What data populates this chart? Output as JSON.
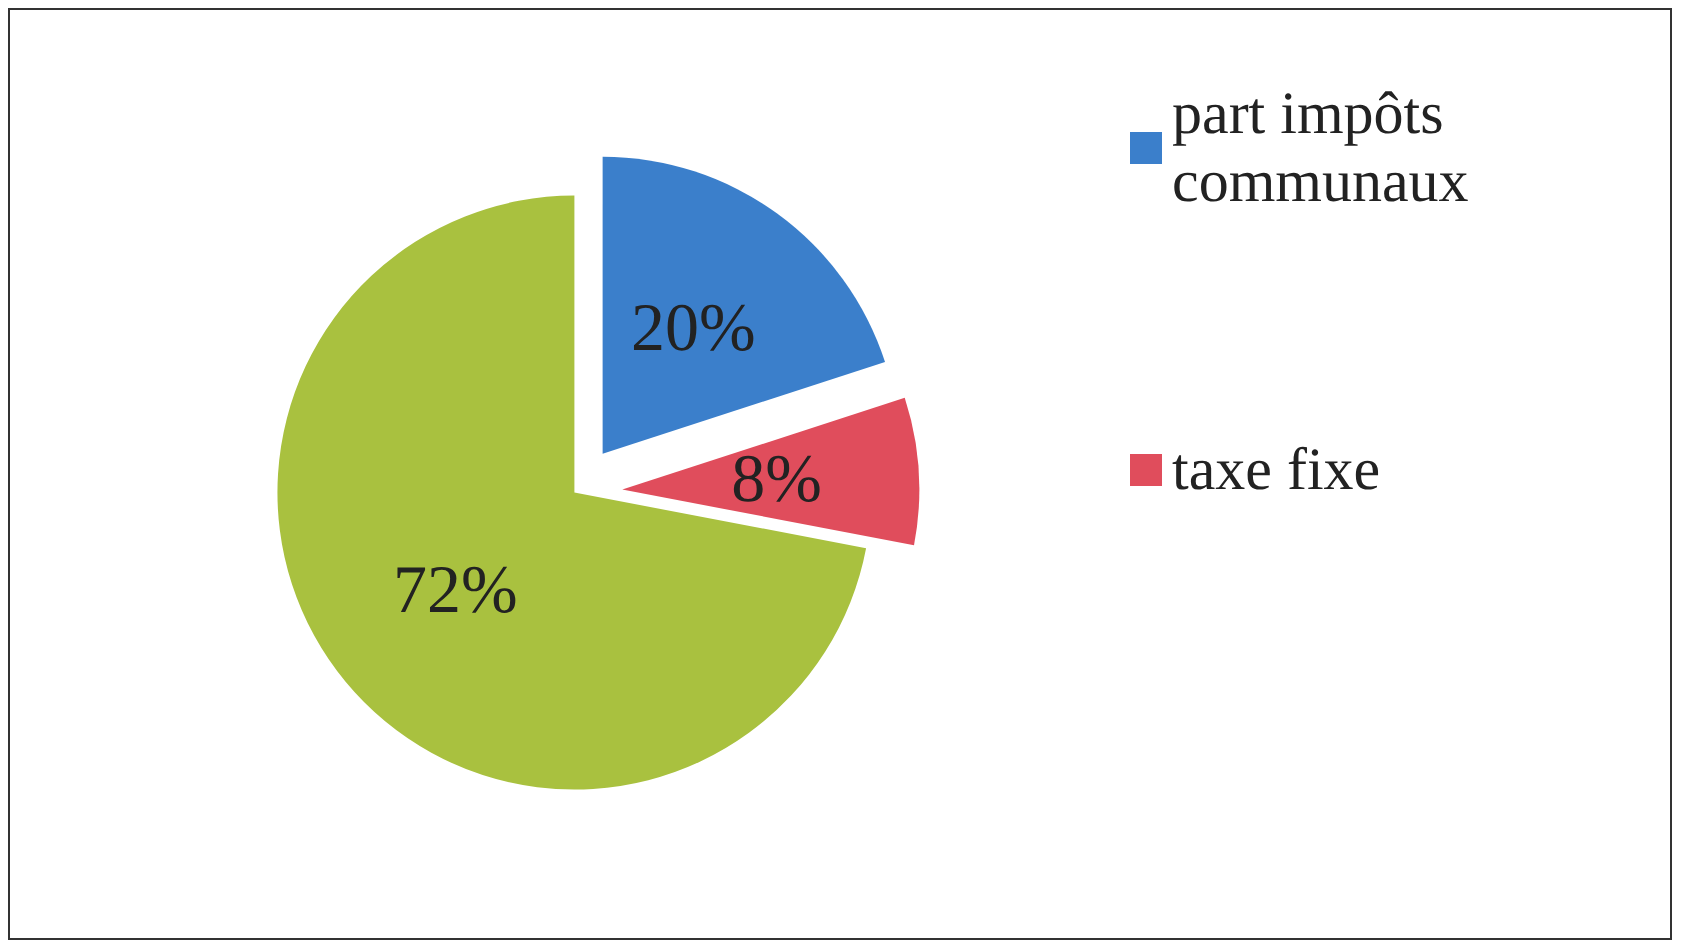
{
  "chart_data": {
    "type": "pie",
    "categories": [
      "part impôts communaux",
      "taxe fixe",
      null
    ],
    "values": [
      20,
      8,
      72
    ],
    "colors": [
      "#3b7fcb",
      "#e04d5c",
      "#a9c13f"
    ],
    "value_labels": [
      "20%",
      "8%",
      "72%"
    ],
    "legend": "right"
  }
}
